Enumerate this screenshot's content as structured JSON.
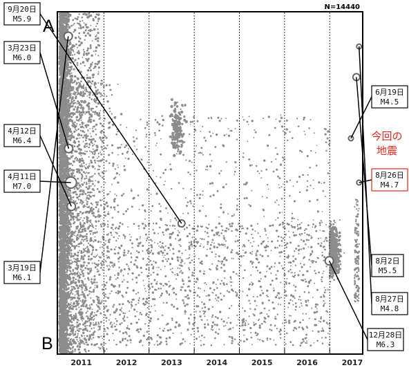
{
  "chart_data": {
    "type": "scatter",
    "count_label": "N=14440",
    "end_label_top": "A",
    "end_label_bottom": "B",
    "x_tick_labels": [
      "2011",
      "2012",
      "2013",
      "2014",
      "2015",
      "2016",
      "2017"
    ],
    "xlim": [
      2011.0,
      2017.7
    ],
    "ylim": [
      0,
      1
    ],
    "grid": "vertical dotted lines at year boundaries",
    "annotation_note": "今回の\n地震",
    "colors": {
      "dots": "#8c8c8c",
      "highlight": "#e0261c",
      "frame": "#000000"
    },
    "events": [
      {
        "date": "3月23日",
        "mag": "M6.0",
        "x": 2011.22,
        "y": 0.4,
        "size": "large"
      },
      {
        "date": "9月20日",
        "mag": "M5.9",
        "x": 2013.72,
        "y": 0.62,
        "size": "medium"
      },
      {
        "date": "4月12日",
        "mag": "M6.4",
        "x": 2011.28,
        "y": 0.57,
        "size": "large"
      },
      {
        "date": "4月11日",
        "mag": "M7.0",
        "x": 2011.27,
        "y": 0.5,
        "size": "xlarge"
      },
      {
        "date": "3月19日",
        "mag": "M6.1",
        "x": 2011.21,
        "y": 0.07,
        "size": "large"
      },
      {
        "date": "6月19日",
        "mag": "M4.5",
        "x": 2017.47,
        "y": 0.37,
        "size": "small"
      },
      {
        "date": "8月26日",
        "mag": "M4.7",
        "x": 2017.65,
        "y": 0.5,
        "size": "small",
        "highlight": true
      },
      {
        "date": "8月2日",
        "mag": "M5.5",
        "x": 2017.59,
        "y": 0.19,
        "size": "medium"
      },
      {
        "date": "8月27日",
        "mag": "M4.8",
        "x": 2017.65,
        "y": 0.1,
        "size": "small"
      },
      {
        "date": "12月28日",
        "mag": "M6.3",
        "x": 2016.99,
        "y": 0.73,
        "size": "large"
      }
    ]
  }
}
